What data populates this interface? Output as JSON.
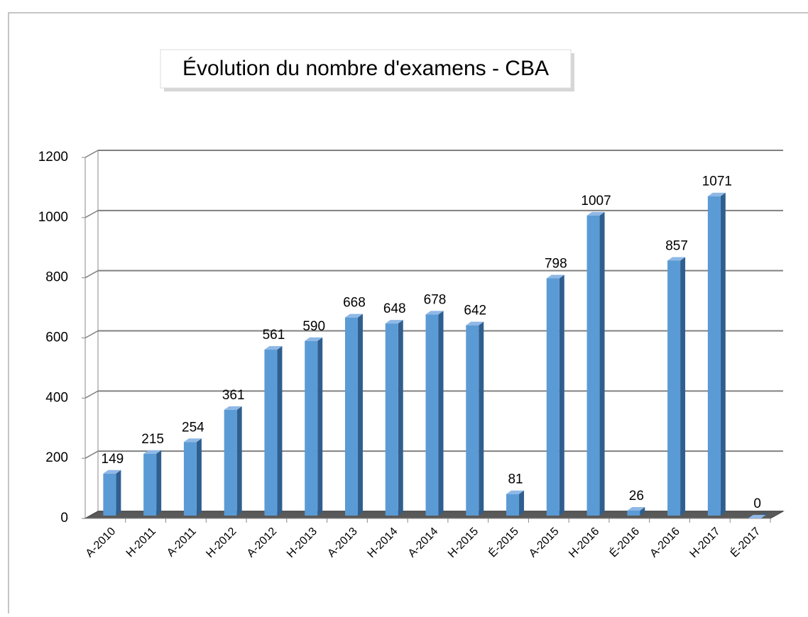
{
  "chart_data": {
    "type": "bar",
    "title": "Évolution du nombre d'examens - CBA",
    "categories": [
      "A-2010",
      "H-2011",
      "A-2011",
      "H-2012",
      "A-2012",
      "H-2013",
      "A-2013",
      "H-2014",
      "A-2014",
      "H-2015",
      "É-2015",
      "A-2015",
      "H-2016",
      "É-2016",
      "A-2016",
      "H-2017",
      "É-2017"
    ],
    "values": [
      149,
      215,
      254,
      361,
      561,
      590,
      668,
      648,
      678,
      642,
      81,
      798,
      1007,
      26,
      857,
      1071,
      0
    ],
    "color": "#5b9bd5",
    "ylim": [
      0,
      1200
    ],
    "yticks": [
      0,
      200,
      400,
      600,
      800,
      1000,
      1200
    ],
    "grid": true
  }
}
